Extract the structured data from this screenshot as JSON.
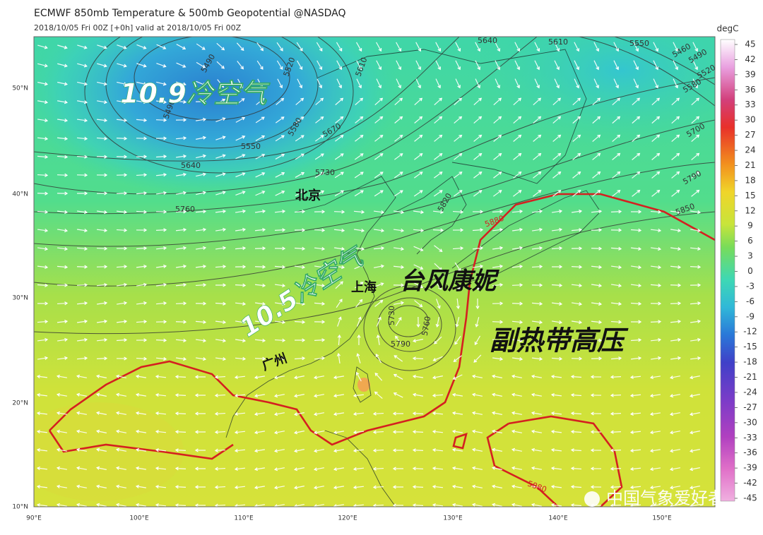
{
  "header": {
    "title": "ECMWF 850mb Temperature & 500mb Geopotential @NASDAQ",
    "subtitle": "2018/10/05 Fri 00Z [+0h] valid at 2018/10/05 Fri 00Z"
  },
  "map": {
    "lat_labels": [
      "50°N",
      "40°N",
      "30°N",
      "20°N",
      "10°N"
    ],
    "lon_labels": [
      "90°E",
      "100°E",
      "110°E",
      "120°E",
      "130°E",
      "140°E",
      "150°E"
    ],
    "contour_labels": [
      "5490",
      "5490",
      "5520",
      "5580",
      "5550",
      "5640",
      "5670",
      "5610",
      "5640",
      "5610",
      "5550",
      "5460",
      "5490",
      "5520",
      "5580",
      "5700",
      "5790",
      "5850",
      "5730",
      "5760",
      "5820",
      "5880",
      "5730",
      "5760",
      "5790",
      "5880"
    ],
    "annotations": [
      "10.9冷空气",
      "北京",
      "10.5冷空气",
      "上海",
      "台风康妮",
      "副热带高压",
      "广州"
    ],
    "watermark": "中国气象爱好者"
  },
  "colorbar": {
    "unit": "degC",
    "ticks": [
      "45",
      "42",
      "39",
      "36",
      "33",
      "30",
      "27",
      "24",
      "21",
      "18",
      "15",
      "12",
      "9",
      "6",
      "3",
      "0",
      "-3",
      "-6",
      "-9",
      "-12",
      "-15",
      "-18",
      "-21",
      "-24",
      "-27",
      "-30",
      "-33",
      "-36",
      "-39",
      "-42",
      "-45"
    ]
  }
}
